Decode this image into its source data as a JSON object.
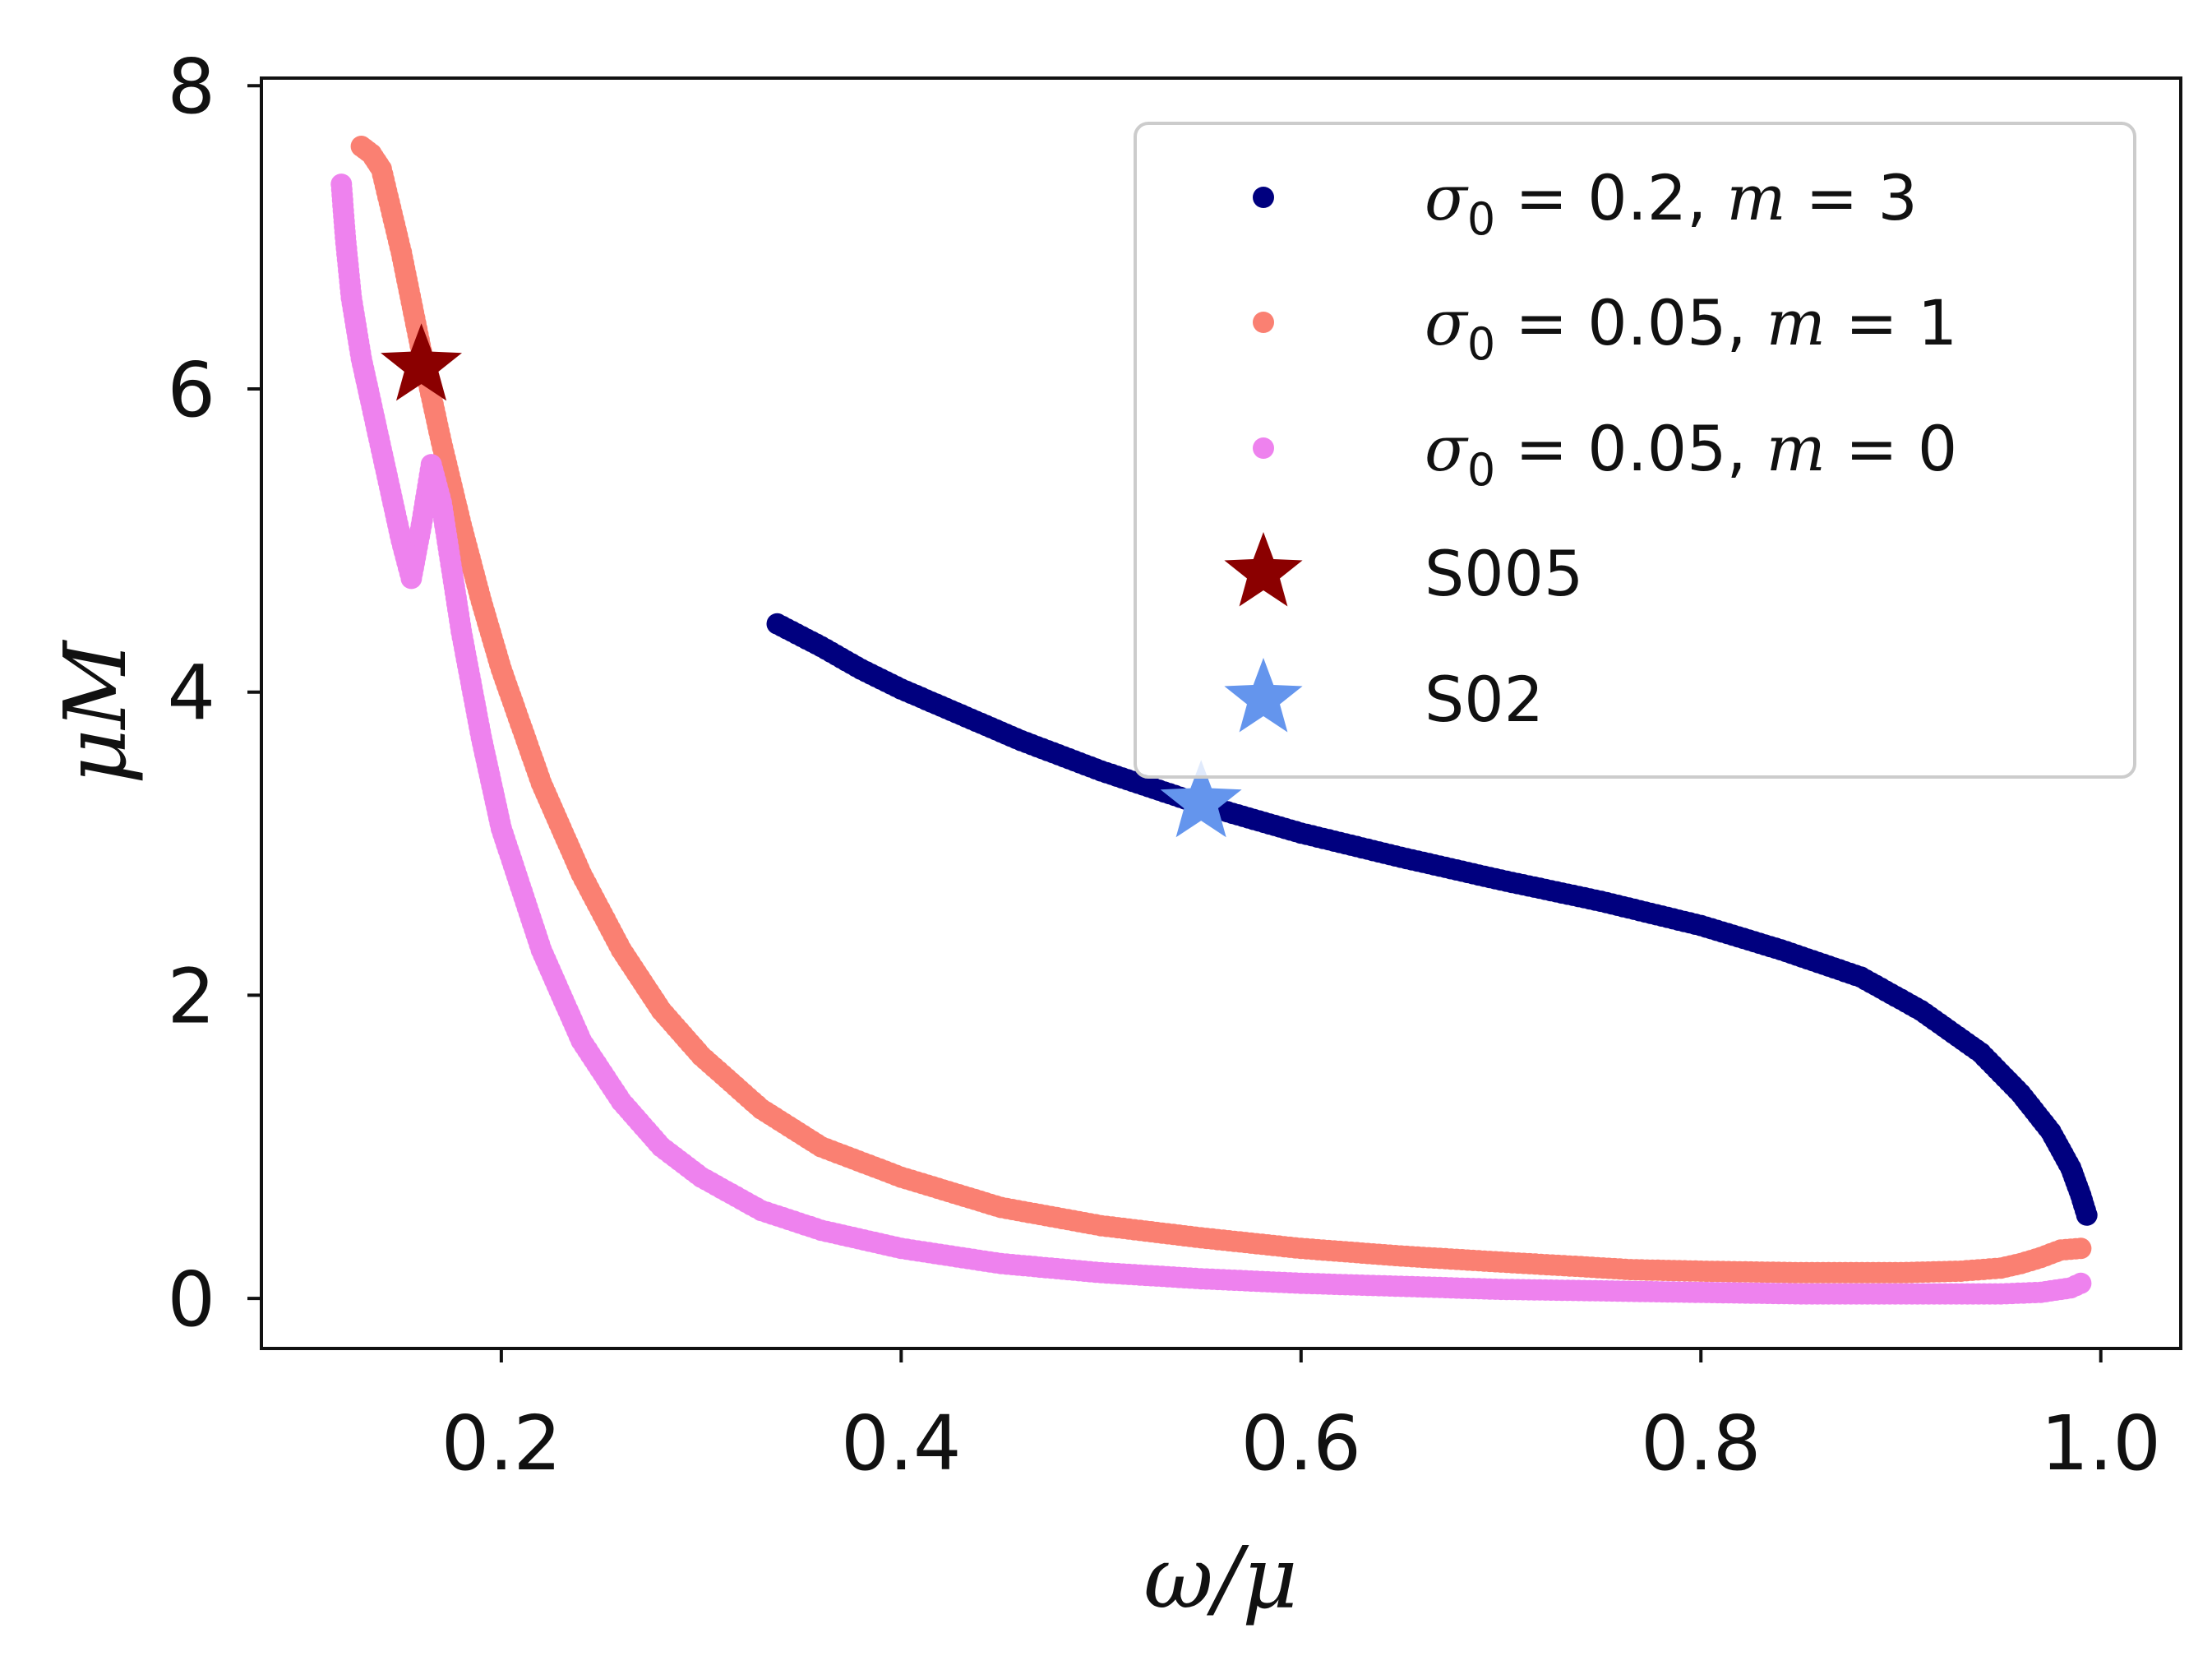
{
  "chart_data": {
    "type": "scatter",
    "title": "",
    "xlabel": "ω/μ",
    "ylabel": "μM",
    "xlim": [
      0.08,
      1.04
    ],
    "ylim": [
      -0.33,
      8.05
    ],
    "xticks": [
      0.2,
      0.4,
      0.6,
      0.8,
      1.0
    ],
    "xtick_labels": [
      "0.2",
      "0.4",
      "0.6",
      "0.8",
      "1.0"
    ],
    "yticks": [
      0,
      2,
      4,
      6,
      8
    ],
    "ytick_labels": [
      "0",
      "2",
      "4",
      "6",
      "8"
    ],
    "grid": false,
    "legend_position": "top-right",
    "series": [
      {
        "name": "σ₀ = 0.2, m = 3",
        "label_parts": [
          "σ",
          "0",
          " = 0.2, ",
          "m",
          " = 3"
        ],
        "color": "#00007f",
        "marker": "dot",
        "x": [
          0.338,
          0.36,
          0.38,
          0.4,
          0.43,
          0.46,
          0.5,
          0.55,
          0.6,
          0.65,
          0.7,
          0.75,
          0.8,
          0.84,
          0.88,
          0.91,
          0.94,
          0.96,
          0.975,
          0.985,
          0.99,
          0.993
        ],
        "y": [
          4.45,
          4.3,
          4.15,
          4.02,
          3.85,
          3.68,
          3.48,
          3.26,
          3.07,
          2.91,
          2.76,
          2.62,
          2.46,
          2.3,
          2.12,
          1.9,
          1.62,
          1.35,
          1.1,
          0.86,
          0.68,
          0.55
        ]
      },
      {
        "name": "σ₀ = 0.05, m = 1",
        "label_parts": [
          "σ",
          "0",
          " = 0.05, ",
          "m",
          " = 1"
        ],
        "color": "#fa8072",
        "marker": "dot",
        "x": [
          0.13,
          0.135,
          0.14,
          0.15,
          0.16,
          0.17,
          0.18,
          0.19,
          0.2,
          0.22,
          0.24,
          0.26,
          0.28,
          0.3,
          0.33,
          0.36,
          0.4,
          0.45,
          0.5,
          0.55,
          0.6,
          0.65,
          0.7,
          0.74,
          0.765,
          0.8,
          0.85,
          0.9,
          0.93,
          0.95,
          0.96,
          0.97,
          0.98,
          0.99
        ],
        "y": [
          7.6,
          7.55,
          7.45,
          6.9,
          6.25,
          5.65,
          5.1,
          4.6,
          4.15,
          3.4,
          2.8,
          2.3,
          1.9,
          1.6,
          1.25,
          1.0,
          0.8,
          0.6,
          0.48,
          0.4,
          0.33,
          0.28,
          0.24,
          0.21,
          0.19,
          0.18,
          0.17,
          0.17,
          0.18,
          0.2,
          0.23,
          0.27,
          0.32,
          0.33
        ]
      },
      {
        "name": "σ₀ = 0.05, m = 0",
        "label_parts": [
          "σ",
          "0",
          " = 0.05, ",
          "m",
          " = 0"
        ],
        "color": "#ee82ee",
        "marker": "dot",
        "x": [
          0.12,
          0.122,
          0.125,
          0.13,
          0.14,
          0.15,
          0.155,
          0.16,
          0.165,
          0.17,
          0.18,
          0.19,
          0.2,
          0.22,
          0.24,
          0.26,
          0.28,
          0.3,
          0.33,
          0.36,
          0.4,
          0.45,
          0.5,
          0.55,
          0.6,
          0.65,
          0.7,
          0.75,
          0.8,
          0.85,
          0.9,
          0.95,
          0.97,
          0.985,
          0.99
        ],
        "y": [
          7.35,
          7.0,
          6.6,
          6.2,
          5.6,
          5.0,
          4.75,
          5.1,
          5.5,
          5.25,
          4.4,
          3.7,
          3.1,
          2.3,
          1.7,
          1.3,
          1.0,
          0.8,
          0.58,
          0.45,
          0.33,
          0.23,
          0.17,
          0.13,
          0.1,
          0.08,
          0.06,
          0.05,
          0.04,
          0.03,
          0.03,
          0.03,
          0.04,
          0.07,
          0.1
        ]
      }
    ],
    "markers": [
      {
        "name": "S005",
        "x": 0.16,
        "y": 6.15,
        "color": "#8b0000",
        "marker": "star"
      },
      {
        "name": "S02",
        "x": 0.55,
        "y": 3.27,
        "color": "#6495ed",
        "marker": "star"
      }
    ]
  }
}
